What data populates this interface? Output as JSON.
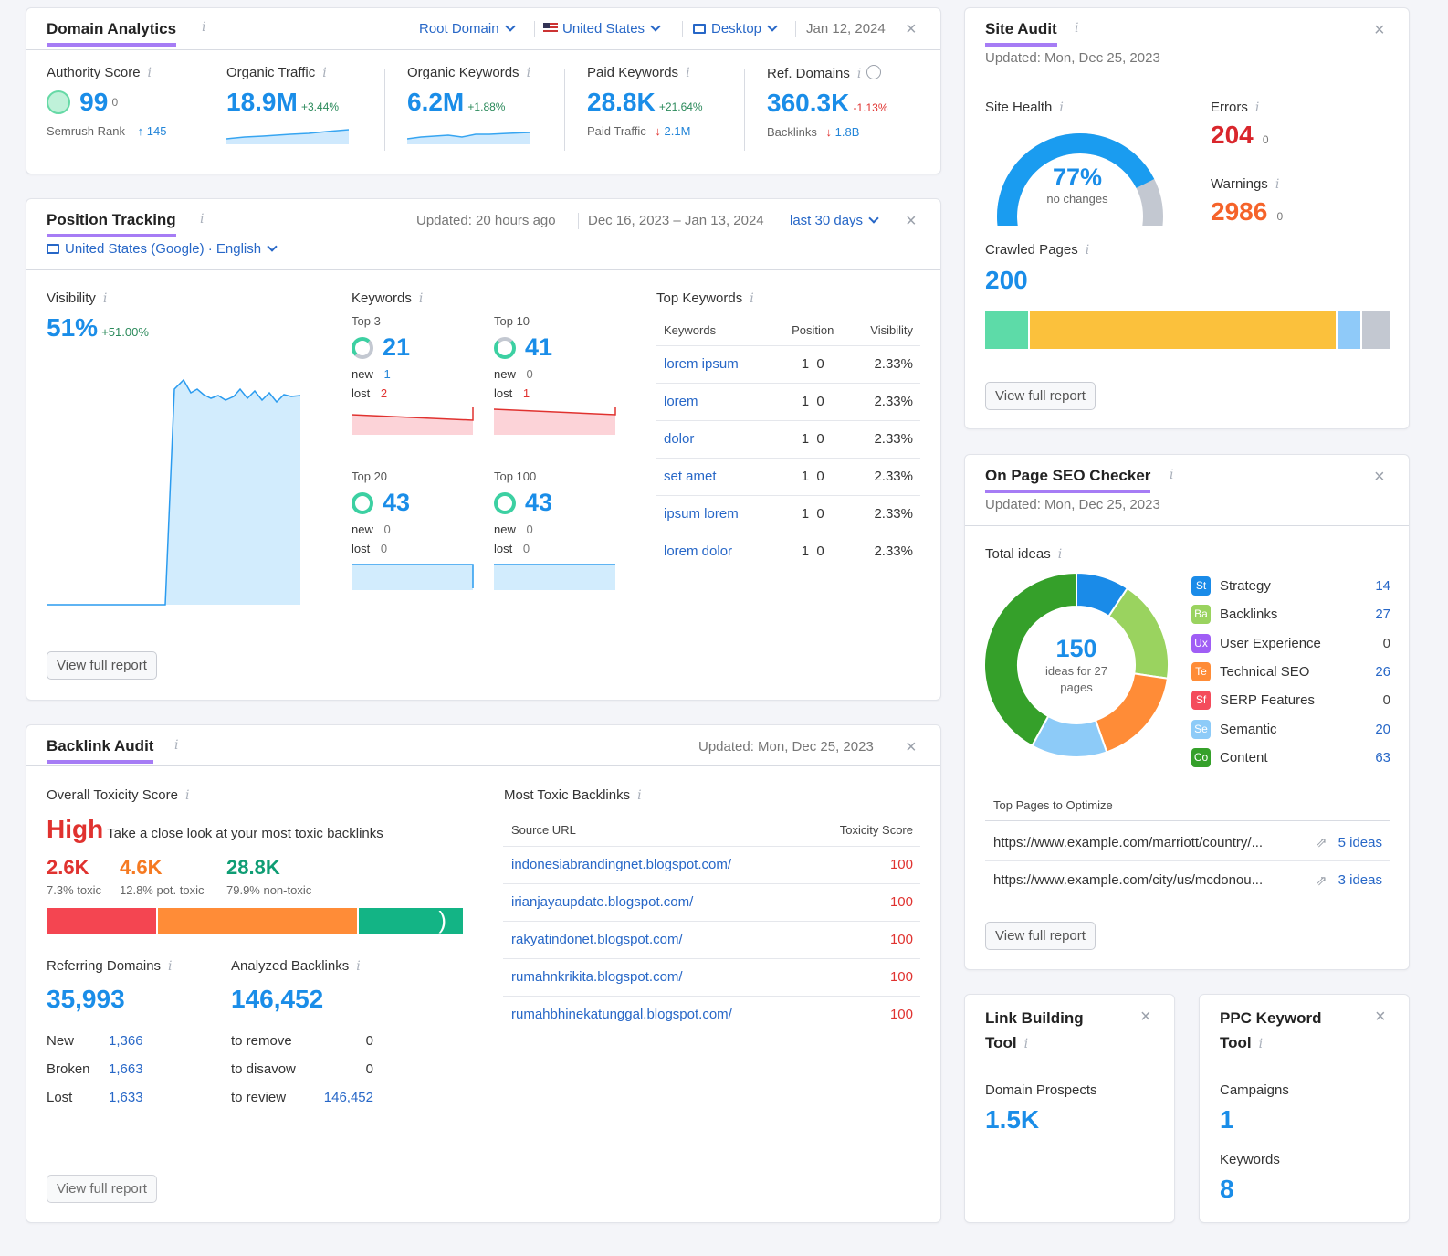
{
  "domain_analytics": {
    "title": "Domain Analytics",
    "filters": {
      "scope": "Root Domain",
      "country": "United States",
      "device": "Desktop",
      "date": "Jan 12, 2024"
    },
    "metrics": [
      {
        "label": "Authority Score",
        "value": "99",
        "delta": "0",
        "sub_label": "Semrush Rank",
        "sub_value": "145",
        "sub_arrow": "↑"
      },
      {
        "label": "Organic Traffic",
        "value": "18.9M",
        "delta": "+3.44%"
      },
      {
        "label": "Organic Keywords",
        "value": "6.2M",
        "delta": "+1.88%"
      },
      {
        "label": "Paid Keywords",
        "value": "28.8K",
        "delta": "+21.64%",
        "sub_label": "Paid Traffic",
        "sub_value": "2.1M",
        "sub_arrow": "↓"
      },
      {
        "label": "Ref. Domains",
        "value": "360.3K",
        "delta": "-1.13%",
        "sub_label": "Backlinks",
        "sub_value": "1.8B",
        "sub_arrow": "↓"
      }
    ]
  },
  "position_tracking": {
    "title": "Position Tracking",
    "updated": "Updated: 20 hours ago",
    "range": "Dec 16, 2023 – Jan 13, 2024",
    "period": "last 30 days",
    "location": "United States (Google) · English",
    "visibility": {
      "label": "Visibility",
      "value": "51%",
      "delta": "+51.00%"
    },
    "keywords_label": "Keywords",
    "groups": [
      {
        "label": "Top 3",
        "value": "21",
        "new_label": "new",
        "new": "1",
        "lost_label": "lost",
        "lost": "2"
      },
      {
        "label": "Top 10",
        "value": "41",
        "new_label": "new",
        "new": "0",
        "lost_label": "lost",
        "lost": "1"
      },
      {
        "label": "Top 20",
        "value": "43",
        "new_label": "new",
        "new": "0",
        "lost_label": "lost",
        "lost": "0"
      },
      {
        "label": "Top 100",
        "value": "43",
        "new_label": "new",
        "new": "0",
        "lost_label": "lost",
        "lost": "0"
      }
    ],
    "top_keywords": {
      "label": "Top Keywords",
      "headers": [
        "Keywords",
        "Position",
        "Visibility"
      ],
      "rows": [
        {
          "kw": "lorem ipsum",
          "pos": "1",
          "chg": "0",
          "vis": "2.33%"
        },
        {
          "kw": "lorem",
          "pos": "1",
          "chg": "0",
          "vis": "2.33%"
        },
        {
          "kw": "dolor",
          "pos": "1",
          "chg": "0",
          "vis": "2.33%"
        },
        {
          "kw": "set amet",
          "pos": "1",
          "chg": "0",
          "vis": "2.33%"
        },
        {
          "kw": "ipsum lorem",
          "pos": "1",
          "chg": "0",
          "vis": "2.33%"
        },
        {
          "kw": "lorem dolor",
          "pos": "1",
          "chg": "0",
          "vis": "2.33%"
        }
      ]
    },
    "button": "View full report"
  },
  "backlink_audit": {
    "title": "Backlink Audit",
    "updated": "Updated: Mon, Dec 25, 2023",
    "toxicity_label": "Overall Toxicity Score",
    "toxicity_level": "High",
    "toxicity_note": "Take a close look at your most toxic backlinks",
    "stats": [
      {
        "value": "2.6K",
        "label": "7.3% toxic",
        "color": "#e0322f"
      },
      {
        "value": "4.6K",
        "label": "12.8% pot. toxic",
        "color": "#f57a22"
      },
      {
        "value": "28.8K",
        "label": "79.9% non-toxic",
        "color": "#0f9d74"
      }
    ],
    "ref_domains": {
      "label": "Referring Domains",
      "value": "35,993",
      "rows": [
        {
          "k": "New",
          "v": "1,366"
        },
        {
          "k": "Broken",
          "v": "1,663"
        },
        {
          "k": "Lost",
          "v": "1,633"
        }
      ]
    },
    "analyzed": {
      "label": "Analyzed Backlinks",
      "value": "146,452",
      "rows": [
        {
          "k": "to remove",
          "v": "0"
        },
        {
          "k": "to disavow",
          "v": "0"
        },
        {
          "k": "to review",
          "v": "146,452"
        }
      ]
    },
    "toxic_list": {
      "label": "Most Toxic Backlinks",
      "headers": [
        "Source URL",
        "Toxicity Score"
      ],
      "rows": [
        {
          "url": "indonesiabrandingnet.blogspot.com/",
          "score": "100"
        },
        {
          "url": "irianjayaupdate.blogspot.com/",
          "score": "100"
        },
        {
          "url": "rakyatindonet.blogspot.com/",
          "score": "100"
        },
        {
          "url": "rumahnkrikita.blogspot.com/",
          "score": "100"
        },
        {
          "url": "rumahbhinekatunggal.blogspot.com/",
          "score": "100"
        }
      ]
    },
    "button": "View full report"
  },
  "site_audit": {
    "title": "Site Audit",
    "updated": "Updated: Mon, Dec 25, 2023",
    "health_label": "Site Health",
    "health_value": "77%",
    "health_fraction": 0.77,
    "health_note": "no changes",
    "errors_label": "Errors",
    "errors": "204",
    "errors_delta": "0",
    "warnings_label": "Warnings",
    "warnings": "2986",
    "warnings_delta": "0",
    "crawled_label": "Crawled Pages",
    "crawled": "200",
    "crawl_segments": [
      {
        "share": 0.11,
        "color": "#5ddba8"
      },
      {
        "share": 0.76,
        "color": "#fbc13c"
      },
      {
        "share": 0.06,
        "color": "#8fcaf9"
      },
      {
        "share": 0.07,
        "color": "#c3c8d1"
      }
    ],
    "button": "View full report"
  },
  "onpage": {
    "title": "On Page SEO Checker",
    "updated": "Updated: Mon, Dec 25, 2023",
    "total_label": "Total ideas",
    "total": "150",
    "total_note": "ideas for 27 pages",
    "categories": [
      {
        "abbr": "St",
        "name": "Strategy",
        "value": "14",
        "num": 14,
        "color": "#1a8be8"
      },
      {
        "abbr": "Ba",
        "name": "Backlinks",
        "value": "27",
        "num": 27,
        "color": "#9ad35f"
      },
      {
        "abbr": "Ux",
        "name": "User Experience",
        "value": "0",
        "num": 0,
        "color": "#a05ef5"
      },
      {
        "abbr": "Te",
        "name": "Technical SEO",
        "value": "26",
        "num": 26,
        "color": "#ff8c37"
      },
      {
        "abbr": "Sf",
        "name": "SERP Features",
        "value": "0",
        "num": 0,
        "color": "#f44c5c"
      },
      {
        "abbr": "Se",
        "name": "Semantic",
        "value": "20",
        "num": 20,
        "color": "#8dcbf8"
      },
      {
        "abbr": "Co",
        "name": "Content",
        "value": "63",
        "num": 63,
        "color": "#35a02a"
      }
    ],
    "pages_label": "Top Pages to Optimize",
    "pages": [
      {
        "url": "https://www.example.com/marriott/country/...",
        "ideas": "5 ideas"
      },
      {
        "url": "https://www.example.com/city/us/mcdonou...",
        "ideas": "3 ideas"
      }
    ],
    "button": "View full report"
  },
  "link_building": {
    "title_line1": "Link Building",
    "title_line2": "Tool",
    "label": "Domain Prospects",
    "value": "1.5K"
  },
  "ppc": {
    "title_line1": "PPC Keyword",
    "title_line2": "Tool",
    "campaigns_label": "Campaigns",
    "campaigns": "1",
    "keywords_label": "Keywords",
    "keywords": "8"
  },
  "colors": {
    "accent": "#a67cf5",
    "blue": "#1a8de8",
    "link": "#2767c7",
    "red": "#e0322f"
  }
}
